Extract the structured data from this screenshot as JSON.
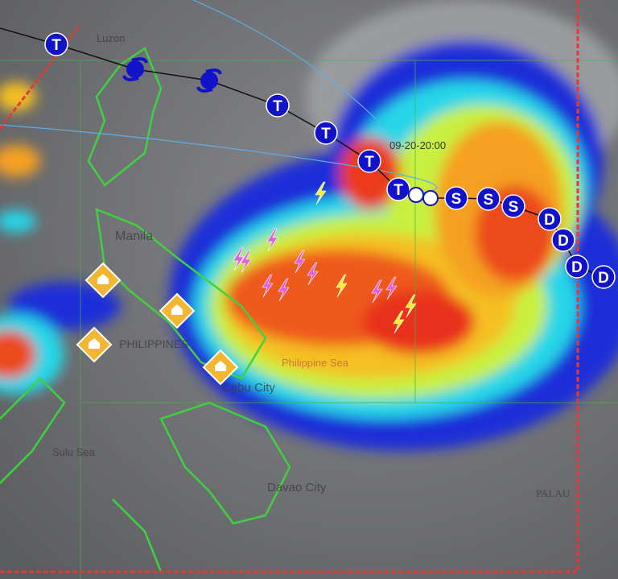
{
  "map": {
    "timestamp_label": "09-20-20:00",
    "place_labels": {
      "luzon": "Luzon",
      "manila": "Manila",
      "philippines": "PHILIPPINES",
      "philippine_sea": "Philippine Sea",
      "cebu": "Cebu City",
      "sulu_sea": "Sulu Sea",
      "davao": "Davao City",
      "palau": "PALAU"
    },
    "track": {
      "past_markers": [
        "typhoon-symbol",
        "typhoon-symbol"
      ],
      "forecast_markers": [
        "T",
        "T",
        "T",
        "T",
        "T",
        "current",
        "current",
        "S",
        "S",
        "S",
        "D",
        "D",
        "D",
        "D"
      ],
      "marker_letters": {
        "typhoon": "T",
        "storm": "S",
        "depression": "D"
      }
    },
    "warning_icon": "flood-warning-diamond-icon",
    "lightning_icon": "lightning-bolt-icon",
    "colors": {
      "track_marker": "#1212c8",
      "track_line": "#111111",
      "coastline": "#3fd13f",
      "boundary": "#e03a3a",
      "warning": "#f2b630",
      "lightning_yellow": "#f5f032",
      "lightning_magenta": "#e060e0"
    }
  }
}
